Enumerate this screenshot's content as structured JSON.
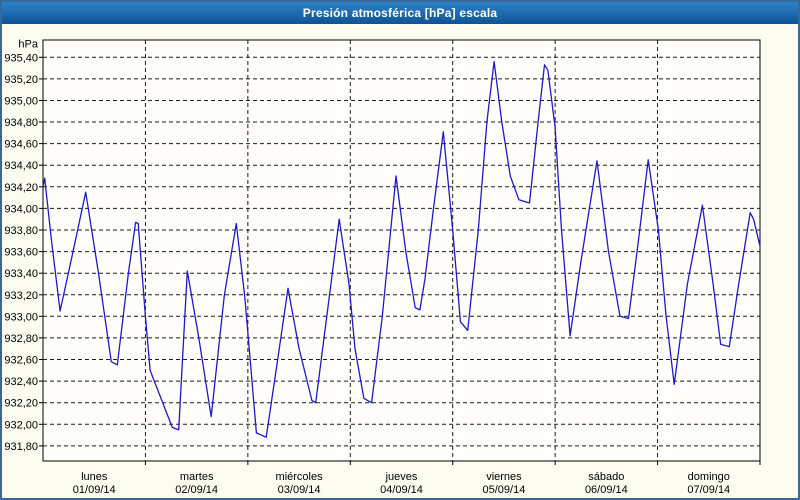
{
  "colors": {
    "titlebar_top": "#2e83c8",
    "titlebar_bottom": "#0d5394",
    "window_border": "#36689b",
    "background": "#fcfdf0",
    "plot_background": "#fffefa",
    "grid_color": "#1a1a1a",
    "line_color": "#1a1acd",
    "title_text": "#ffffff"
  },
  "chart_data": {
    "type": "line",
    "title": "Presión atmosférica [hPa] escala",
    "ylabel": "hPa",
    "xlabel": "",
    "grid": "dashed",
    "legend": false,
    "xlim_hours": [
      0,
      168
    ],
    "ylim": [
      931.66,
      935.56
    ],
    "x_categories": [
      {
        "day": "lunes",
        "date": "01/09/14"
      },
      {
        "day": "martes",
        "date": "02/09/14"
      },
      {
        "day": "miércoles",
        "date": "03/09/14"
      },
      {
        "day": "jueves",
        "date": "04/09/14"
      },
      {
        "day": "viernes",
        "date": "05/09/14"
      },
      {
        "day": "sábado",
        "date": "06/09/14"
      },
      {
        "day": "domingo",
        "date": "07/09/14"
      }
    ],
    "y_ticks": [
      {
        "label": "935,40",
        "value": 935.4
      },
      {
        "label": "935,20",
        "value": 935.2
      },
      {
        "label": "935,00",
        "value": 935.0
      },
      {
        "label": "934,80",
        "value": 934.8
      },
      {
        "label": "934,60",
        "value": 934.6
      },
      {
        "label": "934,40",
        "value": 934.4
      },
      {
        "label": "934,20",
        "value": 934.2
      },
      {
        "label": "934,00",
        "value": 934.0
      },
      {
        "label": "933,80",
        "value": 933.8
      },
      {
        "label": "933,60",
        "value": 933.6
      },
      {
        "label": "933,40",
        "value": 933.4
      },
      {
        "label": "933,20",
        "value": 933.2
      },
      {
        "label": "933,00",
        "value": 933.0
      },
      {
        "label": "932,80",
        "value": 932.8
      },
      {
        "label": "932,60",
        "value": 932.6
      },
      {
        "label": "932,40",
        "value": 932.4
      },
      {
        "label": "932,20",
        "value": 932.2
      },
      {
        "label": "932,00",
        "value": 932.0
      },
      {
        "label": "931,80",
        "value": 931.8
      }
    ],
    "series": [
      {
        "name": "Presión atmosférica",
        "color": "#1a1acd",
        "points": [
          [
            0.0,
            934.2
          ],
          [
            0.4,
            934.28
          ],
          [
            2.0,
            933.7
          ],
          [
            4.0,
            933.05
          ],
          [
            6.5,
            933.5
          ],
          [
            10.0,
            934.15
          ],
          [
            13.0,
            933.4
          ],
          [
            16.0,
            932.58
          ],
          [
            17.4,
            932.55
          ],
          [
            20.0,
            933.4
          ],
          [
            21.7,
            933.87
          ],
          [
            22.3,
            933.86
          ],
          [
            24.0,
            933.0
          ],
          [
            25.1,
            932.5
          ],
          [
            30.3,
            931.97
          ],
          [
            31.8,
            931.95
          ],
          [
            33.8,
            933.42
          ],
          [
            36.5,
            932.8
          ],
          [
            39.4,
            932.07
          ],
          [
            42.5,
            933.2
          ],
          [
            45.3,
            933.86
          ],
          [
            47.3,
            933.17
          ],
          [
            50.0,
            931.92
          ],
          [
            52.3,
            931.88
          ],
          [
            55.0,
            932.6
          ],
          [
            57.4,
            933.26
          ],
          [
            60.0,
            932.7
          ],
          [
            63.0,
            932.22
          ],
          [
            63.9,
            932.2
          ],
          [
            66.5,
            933.0
          ],
          [
            69.4,
            933.9
          ],
          [
            71.7,
            933.3
          ],
          [
            73.1,
            932.7
          ],
          [
            75.2,
            932.24
          ],
          [
            77.0,
            932.2
          ],
          [
            79.5,
            933.0
          ],
          [
            82.7,
            934.3
          ],
          [
            85.0,
            933.6
          ],
          [
            87.2,
            933.08
          ],
          [
            88.3,
            933.06
          ],
          [
            89.5,
            933.35
          ],
          [
            91.5,
            934.0
          ],
          [
            93.8,
            934.71
          ],
          [
            96.0,
            933.8
          ],
          [
            97.8,
            932.95
          ],
          [
            99.5,
            932.87
          ],
          [
            102.0,
            933.8
          ],
          [
            104.0,
            934.8
          ],
          [
            105.7,
            935.36
          ],
          [
            107.5,
            934.8
          ],
          [
            109.5,
            934.3
          ],
          [
            111.5,
            934.08
          ],
          [
            114.0,
            934.05
          ],
          [
            116.0,
            934.8
          ],
          [
            117.5,
            935.33
          ],
          [
            118.3,
            935.28
          ],
          [
            120.0,
            934.75
          ],
          [
            121.5,
            933.8
          ],
          [
            123.5,
            932.82
          ],
          [
            126.0,
            933.5
          ],
          [
            129.8,
            934.44
          ],
          [
            132.5,
            933.6
          ],
          [
            135.2,
            933.0
          ],
          [
            137.2,
            932.98
          ],
          [
            139.5,
            933.7
          ],
          [
            141.8,
            934.45
          ],
          [
            144.2,
            933.8
          ],
          [
            146.0,
            933.0
          ],
          [
            147.9,
            932.37
          ],
          [
            151.0,
            933.3
          ],
          [
            154.5,
            934.03
          ],
          [
            157.0,
            933.3
          ],
          [
            158.8,
            932.74
          ],
          [
            160.8,
            932.72
          ],
          [
            163.0,
            933.3
          ],
          [
            165.7,
            933.96
          ],
          [
            166.5,
            933.9
          ],
          [
            168.0,
            933.65
          ]
        ]
      }
    ]
  }
}
